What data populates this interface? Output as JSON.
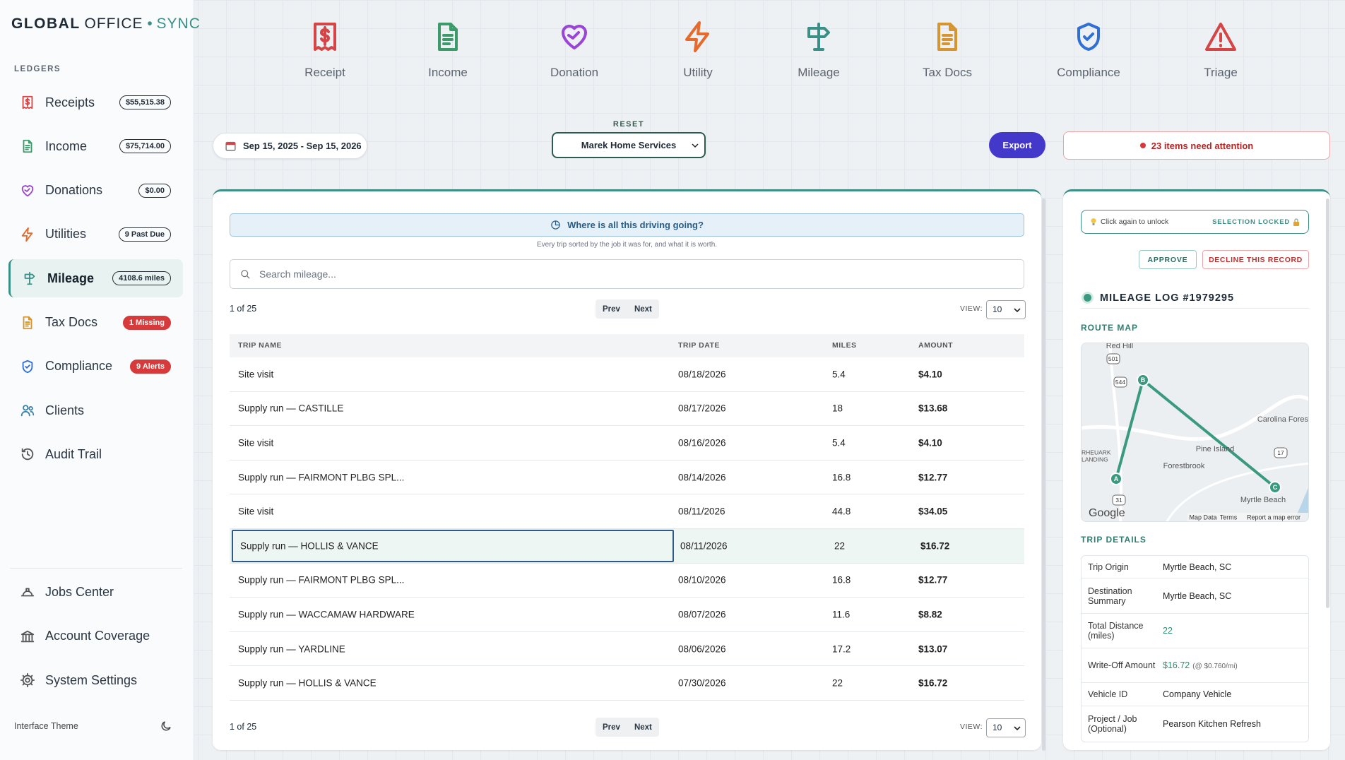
{
  "sidebar": {
    "brand": {
      "bold": "GLOBAL",
      "light": "OFFICE",
      "separator": "•",
      "accent": "SYNC"
    },
    "section": "LEDGERS",
    "nav": [
      {
        "label": "Receipts",
        "badge": "$55,515.38"
      },
      {
        "label": "Income",
        "badge": "$75,714.00"
      },
      {
        "label": "Donations",
        "badge": "$0.00"
      },
      {
        "label": "Utilities",
        "badge": "9 Past Due"
      },
      {
        "label": "Mileage",
        "badge": "4108.6 miles"
      },
      {
        "label": "Tax Docs",
        "badge": "1 Missing"
      },
      {
        "label": "Compliance",
        "badge": "9 Alerts"
      },
      {
        "label": "Clients"
      },
      {
        "label": "Audit Trail"
      }
    ],
    "footer_nav": [
      "Jobs Center",
      "Account Coverage",
      "System Settings"
    ],
    "theme_label": "Interface Theme"
  },
  "quick_actions": [
    "Receipt",
    "Income",
    "Donation",
    "Utility",
    "Mileage",
    "Tax Docs",
    "Compliance",
    "Triage"
  ],
  "toolbar": {
    "date_range": "Sep 15, 2025 - Sep 15, 2026",
    "reset": "RESET",
    "client": "Marek Home Services",
    "export": "Export",
    "attention": "23 items need attention"
  },
  "table": {
    "banner": "Where is all this driving going?",
    "banner_sub": "Every trip sorted by the job it was for, and what it is worth.",
    "search_placeholder": "Search mileage...",
    "page_info": "1 of 25",
    "prev": "Prev",
    "next": "Next",
    "view_label": "VIEW:",
    "page_size": "10",
    "columns": [
      "TRIP NAME",
      "TRIP DATE",
      "MILES",
      "AMOUNT"
    ],
    "rows": [
      [
        "Site visit",
        "08/18/2026",
        5.4,
        "$4.10"
      ],
      [
        "Supply run — CASTILLE",
        "08/17/2026",
        18,
        "$13.68"
      ],
      [
        "Site visit",
        "08/16/2026",
        5.4,
        "$4.10"
      ],
      [
        "Supply run — FAIRMONT PLBG SPL...",
        "08/14/2026",
        16.8,
        "$12.77"
      ],
      [
        "Site visit",
        "08/11/2026",
        44.8,
        "$34.05"
      ],
      [
        "Supply run — HOLLIS & VANCE",
        "08/11/2026",
        22,
        "$16.72"
      ],
      [
        "Supply run — FAIRMONT PLBG SPL...",
        "08/10/2026",
        16.8,
        "$12.77"
      ],
      [
        "Supply run — WACCAMAW HARDWARE",
        "08/07/2026",
        11.6,
        "$8.82"
      ],
      [
        "Supply run — YARDLINE",
        "08/06/2026",
        17.2,
        "$13.07"
      ],
      [
        "Supply run — HOLLIS & VANCE",
        "07/30/2026",
        22,
        "$16.72"
      ]
    ]
  },
  "detail": {
    "lock_hint": "Click again to unlock",
    "lock_state": "SELECTION LOCKED",
    "approve": "APPROVE",
    "decline": "DECLINE THIS RECORD",
    "title": "MILEAGE LOG #1979295",
    "route_map": "ROUTE MAP",
    "map": {
      "places": [
        "Red Hill",
        "Carolina Fores",
        "Pine Island",
        "RHEUARK",
        "LANDING",
        "Forestbrook",
        "Myrtle Beach"
      ],
      "shields": [
        "501",
        "544",
        "17",
        "31"
      ],
      "markers": [
        "A",
        "B",
        "C"
      ],
      "logo": "Google",
      "attribution": [
        "Map Data",
        "Terms",
        "Report a map error"
      ]
    },
    "trip_details": "TRIP DETAILS",
    "fields": [
      {
        "label": "Trip Origin",
        "value": "Myrtle Beach, SC"
      },
      {
        "label": "Destination Summary",
        "value": "Myrtle Beach, SC"
      },
      {
        "label": "Total Distance (miles)",
        "value": "22"
      },
      {
        "label": "Write-Off Amount",
        "value": "$16.72",
        "note": "(@ $0.760/mi)"
      },
      {
        "label": "Vehicle ID",
        "value": "Company Vehicle"
      },
      {
        "label": "Project / Job (Optional)",
        "value": "Pearson Kitchen Refresh"
      }
    ]
  }
}
